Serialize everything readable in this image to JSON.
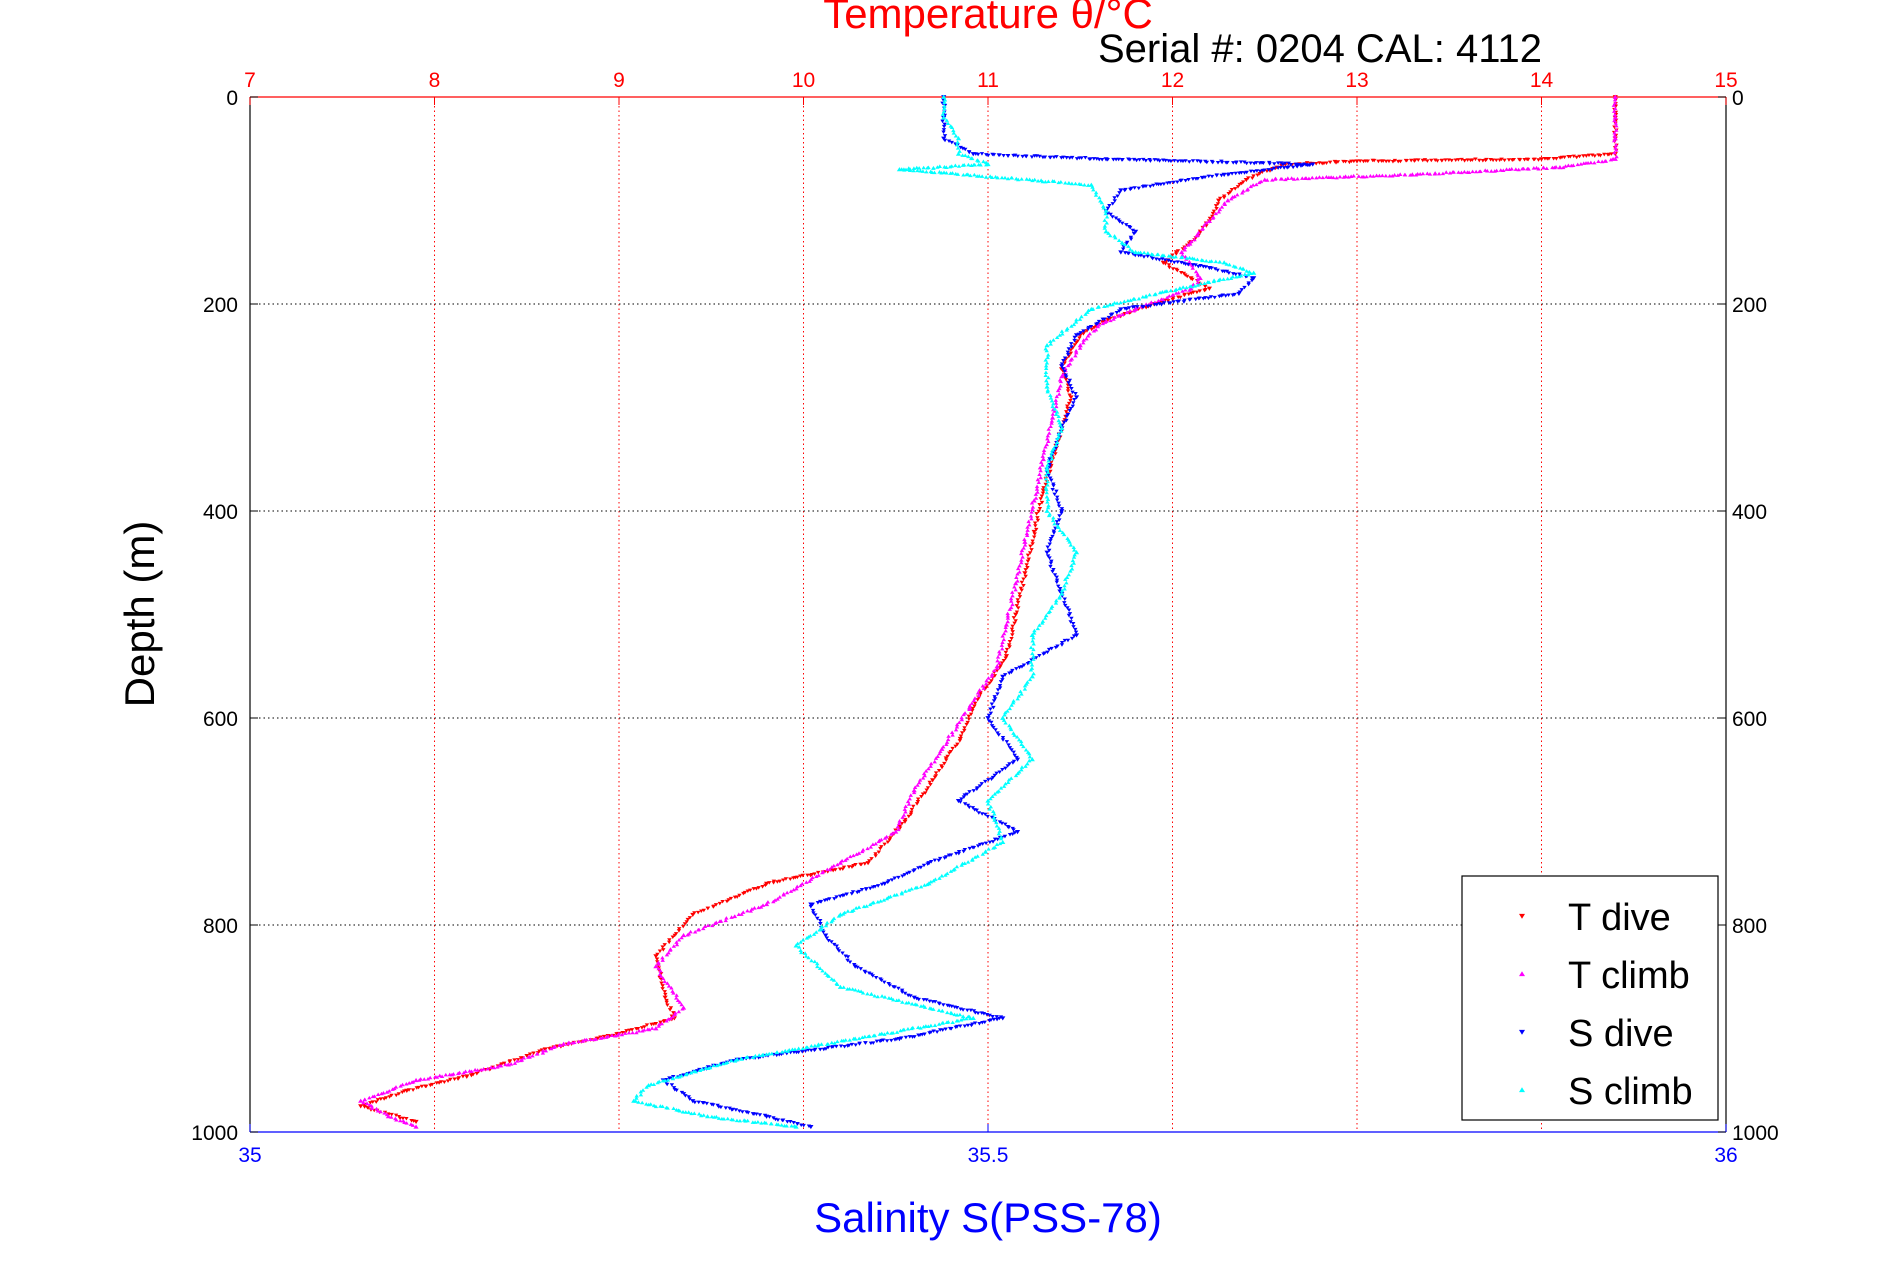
{
  "chart_data": {
    "type": "scatter",
    "title": "Temperature θ/°C",
    "subtitle": "Serial #: 0204  CAL: 4112",
    "ylabel": "Depth (m)",
    "xlabel_bottom": "Salinity S(PSS-78)",
    "ylim": [
      0,
      1000
    ],
    "y_reversed": true,
    "temperature_axis": {
      "range": [
        7,
        15
      ],
      "ticks": [
        "7",
        "8",
        "9",
        "10",
        "11",
        "12",
        "13",
        "14",
        "15"
      ],
      "color": "#ff0000",
      "grid": true
    },
    "salinity_axis": {
      "range": [
        35,
        36
      ],
      "ticks": [
        "35",
        "35.5",
        "36"
      ],
      "color": "#0000ff"
    },
    "depth_ticks": [
      "0",
      "200",
      "400",
      "600",
      "800",
      "1000"
    ],
    "legend_position": "bottom-right",
    "series": [
      {
        "name": "T dive",
        "color": "#ff0000",
        "marker": "down-triangle",
        "axis": "temperature",
        "points": [
          [
            14.4,
            0
          ],
          [
            14.4,
            20
          ],
          [
            14.4,
            40
          ],
          [
            14.4,
            55
          ],
          [
            14.0,
            60
          ],
          [
            13.0,
            62
          ],
          [
            12.6,
            65
          ],
          [
            12.4,
            80
          ],
          [
            12.25,
            100
          ],
          [
            12.2,
            120
          ],
          [
            12.1,
            140
          ],
          [
            11.95,
            160
          ],
          [
            12.1,
            175
          ],
          [
            12.2,
            185
          ],
          [
            11.9,
            200
          ],
          [
            11.65,
            215
          ],
          [
            11.5,
            230
          ],
          [
            11.4,
            260
          ],
          [
            11.45,
            290
          ],
          [
            11.4,
            320
          ],
          [
            11.35,
            350
          ],
          [
            11.3,
            380
          ],
          [
            11.25,
            420
          ],
          [
            11.2,
            460
          ],
          [
            11.15,
            500
          ],
          [
            11.1,
            540
          ],
          [
            10.95,
            580
          ],
          [
            10.85,
            620
          ],
          [
            10.7,
            660
          ],
          [
            10.55,
            700
          ],
          [
            10.35,
            740
          ],
          [
            9.8,
            760
          ],
          [
            9.4,
            790
          ],
          [
            9.2,
            830
          ],
          [
            9.25,
            870
          ],
          [
            9.3,
            890
          ],
          [
            9.0,
            905
          ],
          [
            8.6,
            920
          ],
          [
            8.2,
            945
          ],
          [
            7.85,
            960
          ],
          [
            7.6,
            975
          ],
          [
            7.9,
            990
          ]
        ]
      },
      {
        "name": "T climb",
        "color": "#ff00ff",
        "marker": "up-triangle",
        "axis": "temperature",
        "points": [
          [
            14.4,
            0
          ],
          [
            14.4,
            20
          ],
          [
            14.4,
            40
          ],
          [
            14.4,
            60
          ],
          [
            14.1,
            68
          ],
          [
            13.3,
            75
          ],
          [
            12.5,
            80
          ],
          [
            12.3,
            100
          ],
          [
            12.2,
            120
          ],
          [
            12.05,
            150
          ],
          [
            12.15,
            175
          ],
          [
            12.1,
            185
          ],
          [
            11.8,
            205
          ],
          [
            11.6,
            220
          ],
          [
            11.5,
            240
          ],
          [
            11.4,
            270
          ],
          [
            11.35,
            310
          ],
          [
            11.3,
            350
          ],
          [
            11.25,
            390
          ],
          [
            11.2,
            430
          ],
          [
            11.15,
            470
          ],
          [
            11.1,
            510
          ],
          [
            11.05,
            550
          ],
          [
            10.9,
            590
          ],
          [
            10.75,
            630
          ],
          [
            10.6,
            670
          ],
          [
            10.5,
            710
          ],
          [
            10.2,
            740
          ],
          [
            9.8,
            780
          ],
          [
            9.35,
            810
          ],
          [
            9.2,
            840
          ],
          [
            9.35,
            880
          ],
          [
            9.2,
            900
          ],
          [
            8.7,
            915
          ],
          [
            8.4,
            935
          ],
          [
            7.9,
            950
          ],
          [
            7.6,
            970
          ],
          [
            7.75,
            985
          ],
          [
            7.9,
            995
          ]
        ]
      },
      {
        "name": "S dive",
        "color": "#0000ff",
        "marker": "down-triangle",
        "axis": "salinity",
        "points": [
          [
            35.47,
            0
          ],
          [
            35.47,
            20
          ],
          [
            35.47,
            40
          ],
          [
            35.49,
            55
          ],
          [
            35.58,
            60
          ],
          [
            35.72,
            65
          ],
          [
            35.66,
            75
          ],
          [
            35.59,
            90
          ],
          [
            35.58,
            110
          ],
          [
            35.6,
            130
          ],
          [
            35.59,
            150
          ],
          [
            35.65,
            165
          ],
          [
            35.68,
            175
          ],
          [
            35.67,
            190
          ],
          [
            35.59,
            205
          ],
          [
            35.56,
            230
          ],
          [
            35.55,
            260
          ],
          [
            35.56,
            290
          ],
          [
            35.55,
            320
          ],
          [
            35.54,
            360
          ],
          [
            35.55,
            400
          ],
          [
            35.54,
            440
          ],
          [
            35.55,
            480
          ],
          [
            35.56,
            520
          ],
          [
            35.51,
            560
          ],
          [
            35.5,
            600
          ],
          [
            35.52,
            640
          ],
          [
            35.48,
            680
          ],
          [
            35.52,
            710
          ],
          [
            35.46,
            740
          ],
          [
            35.43,
            760
          ],
          [
            35.38,
            780
          ],
          [
            35.39,
            810
          ],
          [
            35.41,
            840
          ],
          [
            35.45,
            870
          ],
          [
            35.51,
            890
          ],
          [
            35.44,
            910
          ],
          [
            35.33,
            930
          ],
          [
            35.28,
            950
          ],
          [
            35.3,
            970
          ],
          [
            35.35,
            985
          ],
          [
            35.38,
            995
          ]
        ]
      },
      {
        "name": "S climb",
        "color": "#00ffff",
        "marker": "up-triangle",
        "axis": "salinity",
        "points": [
          [
            35.47,
            0
          ],
          [
            35.47,
            20
          ],
          [
            35.48,
            40
          ],
          [
            35.48,
            55
          ],
          [
            35.5,
            65
          ],
          [
            35.44,
            70
          ],
          [
            35.57,
            85
          ],
          [
            35.58,
            110
          ],
          [
            35.58,
            130
          ],
          [
            35.6,
            150
          ],
          [
            35.66,
            160
          ],
          [
            35.68,
            170
          ],
          [
            35.63,
            185
          ],
          [
            35.57,
            205
          ],
          [
            35.54,
            240
          ],
          [
            35.54,
            280
          ],
          [
            35.55,
            320
          ],
          [
            35.54,
            360
          ],
          [
            35.54,
            400
          ],
          [
            35.56,
            440
          ],
          [
            35.55,
            480
          ],
          [
            35.53,
            520
          ],
          [
            35.53,
            560
          ],
          [
            35.51,
            600
          ],
          [
            35.53,
            640
          ],
          [
            35.5,
            680
          ],
          [
            35.51,
            720
          ],
          [
            35.46,
            760
          ],
          [
            35.4,
            790
          ],
          [
            35.37,
            820
          ],
          [
            35.4,
            860
          ],
          [
            35.49,
            890
          ],
          [
            35.41,
            910
          ],
          [
            35.33,
            930
          ],
          [
            35.27,
            955
          ],
          [
            35.26,
            970
          ],
          [
            35.31,
            985
          ],
          [
            35.37,
            995
          ]
        ]
      }
    ]
  }
}
